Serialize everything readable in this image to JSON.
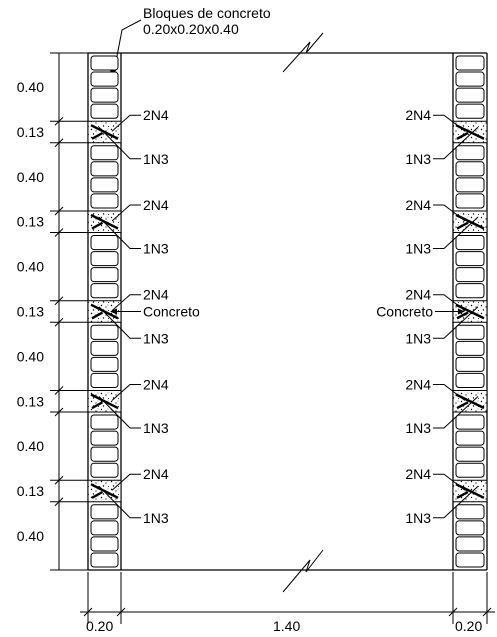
{
  "title": {
    "line1": "Bloques de concreto",
    "line2": "0.20x0.20x0.40"
  },
  "vertical_dims": [
    "0.40",
    "0.13",
    "0.40",
    "0.13",
    "0.40",
    "0.13",
    "0.40",
    "0.13",
    "0.40",
    "0.13",
    "0.40"
  ],
  "horizontal_dims": {
    "left": "0.20",
    "middle": "1.40",
    "right": "0.20"
  },
  "rebar_labels": {
    "top": "2N4",
    "bottom": "1N3"
  },
  "concrete_label": "Concreto",
  "colors": {
    "line": "#000000",
    "background": "#ffffff"
  }
}
